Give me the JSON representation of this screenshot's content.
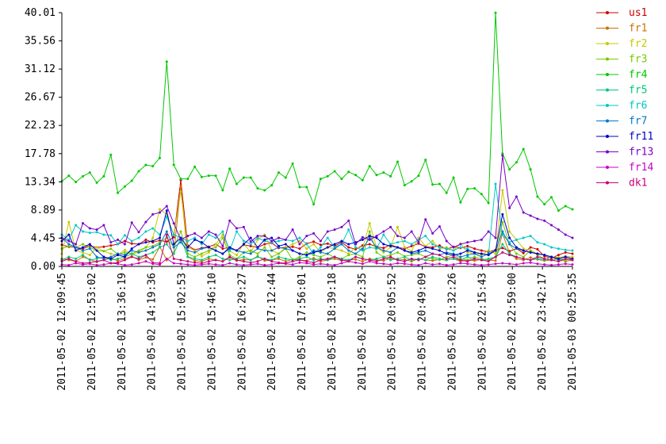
{
  "chart_data": {
    "type": "line",
    "title": "",
    "xlabel": "",
    "ylabel": "",
    "ylim": [
      0,
      40.01
    ],
    "y_ticks": [
      "0.00",
      "4.45",
      "8.89",
      "13.34",
      "17.78",
      "22.23",
      "26.67",
      "31.12",
      "35.56",
      "40.01"
    ],
    "x_ticks": [
      "2011-05-02 12:09:45",
      "2011-05-02 12:53:02",
      "2011-05-02 13:36:19",
      "2011-05-02 14:19:36",
      "2011-05-02 15:02:53",
      "2011-05-02 15:46:10",
      "2011-05-02 16:29:27",
      "2011-05-02 17:12:44",
      "2011-05-02 17:56:01",
      "2011-05-02 18:39:18",
      "2011-05-02 19:22:35",
      "2011-05-02 20:05:52",
      "2011-05-02 20:49:09",
      "2011-05-02 21:32:26",
      "2011-05-02 22:15:43",
      "2011-05-02 22:59:00",
      "2011-05-02 23:42:17",
      "2011-05-03 00:25:35"
    ],
    "grid": false,
    "legend_position": "right",
    "series": [
      {
        "name": "us1",
        "color": "#cc0000",
        "values": [
          3.4,
          3.1,
          3.0,
          2.8,
          3.2,
          3.0,
          3.1,
          3.3,
          3.5,
          4.0,
          3.6,
          3.5,
          4.2,
          3.8,
          4.1,
          3.9,
          4.6,
          13.6,
          3.3,
          2.6,
          2.9,
          3.1,
          3.5,
          2.8,
          3.0,
          2.5,
          3.4,
          3.2,
          3.0,
          3.5,
          3.7,
          2.9,
          3.0,
          3.1,
          2.8,
          3.6,
          3.9,
          3.4,
          3.6,
          3.2,
          3.8,
          3.0,
          2.7,
          3.3,
          3.5,
          3.1,
          2.9,
          3.4,
          3.0,
          2.8,
          3.2,
          3.6,
          3.1,
          3.0,
          3.3,
          2.7,
          3.1,
          2.9,
          3.2,
          2.8,
          2.5,
          2.3,
          2.6,
          2.9,
          2.4,
          2.8,
          2.1,
          3.0,
          2.7,
          1.6,
          1.3,
          1.8,
          2.2,
          2.0
        ]
      },
      {
        "name": "fr1",
        "color": "#c87000",
        "values": [
          1.2,
          1.0,
          0.8,
          1.5,
          1.1,
          0.7,
          1.0,
          1.3,
          0.9,
          1.2,
          1.6,
          1.0,
          1.4,
          1.1,
          3.1,
          1.0,
          2.0,
          12.6,
          1.5,
          0.9,
          0.8,
          1.2,
          1.0,
          0.8,
          1.4,
          0.9,
          1.1,
          1.0,
          1.6,
          0.9,
          1.0,
          1.2,
          0.8,
          1.1,
          1.0,
          0.9,
          1.3,
          0.8,
          1.0,
          1.2,
          0.9,
          1.0,
          1.1,
          0.8,
          1.2,
          1.0,
          0.9,
          1.3,
          1.0,
          1.1,
          0.8,
          1.2,
          1.0,
          0.9,
          1.1,
          1.0,
          1.2,
          0.8,
          1.0,
          0.9,
          1.1,
          1.0,
          0.9,
          5.2,
          2.1,
          1.2,
          1.0,
          1.4,
          1.1,
          0.9,
          1.0,
          1.2,
          0.8,
          1.0
        ]
      },
      {
        "name": "fr2",
        "color": "#c8c800",
        "values": [
          2.0,
          7.0,
          2.5,
          2.2,
          1.8,
          3.0,
          2.4,
          2.0,
          1.8,
          2.6,
          1.9,
          2.2,
          3.0,
          4.5,
          9.0,
          8.2,
          5.0,
          11.8,
          3.0,
          2.5,
          1.6,
          2.2,
          3.5,
          5.0,
          2.4,
          1.8,
          3.6,
          2.2,
          4.2,
          5.0,
          2.5,
          2.0,
          3.0,
          3.5,
          4.0,
          2.8,
          3.5,
          2.2,
          3.0,
          2.8,
          2.5,
          2.0,
          3.0,
          2.8,
          6.8,
          3.0,
          2.2,
          3.0,
          6.2,
          3.0,
          2.4,
          4.5,
          3.2,
          4.0,
          2.8,
          3.0,
          2.5,
          3.6,
          2.2,
          2.0,
          1.8,
          2.5,
          2.0,
          12.0,
          5.5,
          4.2,
          2.8,
          2.5,
          2.0,
          1.8,
          1.5,
          1.4,
          1.6,
          1.5
        ]
      },
      {
        "name": "fr3",
        "color": "#78c800",
        "values": [
          2.8,
          3.2,
          3.0,
          3.5,
          3.0,
          2.5,
          2.4,
          2.8,
          1.9,
          2.2,
          2.0,
          2.5,
          3.0,
          3.2,
          3.8,
          4.5,
          3.0,
          5.5,
          2.0,
          1.5,
          2.0,
          2.5,
          3.0,
          4.5,
          1.8,
          1.2,
          2.2,
          2.5,
          2.0,
          3.0,
          1.5,
          2.0,
          2.8,
          1.0,
          1.5,
          2.2,
          1.8,
          1.5,
          2.0,
          1.4,
          1.2,
          1.8,
          2.0,
          1.5,
          5.5,
          2.2,
          1.5,
          1.8,
          2.2,
          1.6,
          1.8,
          2.0,
          1.5,
          1.2,
          1.0,
          1.5,
          1.8,
          1.2,
          1.0,
          1.5,
          1.2,
          1.0,
          1.5,
          7.0,
          3.5,
          2.0,
          1.5,
          2.5,
          1.8,
          1.2,
          1.0,
          0.8,
          1.0,
          1.2
        ]
      },
      {
        "name": "fr4",
        "color": "#00c800",
        "values": [
          13.4,
          14.3,
          13.3,
          14.2,
          14.8,
          13.2,
          14.2,
          17.6,
          11.6,
          12.6,
          13.5,
          15.0,
          16.0,
          15.8,
          17.1,
          32.3,
          16.0,
          13.8,
          13.8,
          15.7,
          14.1,
          14.3,
          14.3,
          12.0,
          15.4,
          13.0,
          14.0,
          14.0,
          12.3,
          12.0,
          12.8,
          14.8,
          14.0,
          16.2,
          12.5,
          12.5,
          9.8,
          13.8,
          14.2,
          15.0,
          13.8,
          14.9,
          14.4,
          13.6,
          15.8,
          14.4,
          14.8,
          14.2,
          16.5,
          12.8,
          13.4,
          14.3,
          16.8,
          12.9,
          13.0,
          11.6,
          14.0,
          10.1,
          12.2,
          12.3,
          11.4,
          10.0,
          40.0,
          17.8,
          15.3,
          16.4,
          18.5,
          15.3,
          11.0,
          9.8,
          10.9,
          8.8,
          9.5,
          9.0
        ]
      },
      {
        "name": "fr5",
        "color": "#00c878",
        "values": [
          1.0,
          1.5,
          1.2,
          1.8,
          1.0,
          1.2,
          1.5,
          1.0,
          1.2,
          1.5,
          2.0,
          1.5,
          1.8,
          2.2,
          3.0,
          3.5,
          2.0,
          4.5,
          1.5,
          1.2,
          1.0,
          1.5,
          1.8,
          1.2,
          1.0,
          1.2,
          1.5,
          1.0,
          1.5,
          1.2,
          1.0,
          1.5,
          1.2,
          1.0,
          1.2,
          1.5,
          1.0,
          1.2,
          1.0,
          1.5,
          1.2,
          1.0,
          1.5,
          1.2,
          1.0,
          1.2,
          1.5,
          1.0,
          1.2,
          1.5,
          1.0,
          1.2,
          1.0,
          1.5,
          1.2,
          1.0,
          1.2,
          1.0,
          1.5,
          1.2,
          1.0,
          1.2,
          1.5,
          3.5,
          2.0,
          1.5,
          1.2,
          1.0,
          1.2,
          1.0,
          1.5,
          1.0,
          1.2,
          1.0
        ]
      },
      {
        "name": "fr6",
        "color": "#00c8c8",
        "values": [
          5.0,
          4.2,
          6.5,
          5.5,
          5.3,
          5.4,
          5.0,
          4.9,
          3.5,
          4.9,
          4.0,
          4.5,
          5.5,
          6.0,
          5.0,
          7.8,
          5.0,
          4.5,
          4.0,
          4.5,
          3.5,
          5.0,
          4.5,
          5.5,
          2.5,
          5.5,
          4.0,
          3.5,
          4.5,
          4.0,
          3.8,
          4.0,
          4.2,
          4.0,
          4.5,
          3.5,
          2.0,
          3.0,
          4.5,
          3.0,
          3.5,
          5.8,
          3.0,
          2.5,
          3.0,
          2.8,
          5.0,
          3.5,
          3.8,
          4.0,
          3.5,
          4.2,
          4.8,
          3.5,
          3.0,
          2.8,
          2.5,
          3.0,
          2.8,
          2.2,
          2.0,
          1.8,
          13.0,
          5.0,
          3.8,
          4.2,
          4.5,
          4.8,
          3.8,
          3.5,
          3.0,
          2.8,
          2.6,
          2.5
        ]
      },
      {
        "name": "fr7",
        "color": "#0078c8",
        "values": [
          4.5,
          3.5,
          3.0,
          2.5,
          2.8,
          1.5,
          1.2,
          1.5,
          2.0,
          1.8,
          2.5,
          2.2,
          2.5,
          3.0,
          3.5,
          5.5,
          3.0,
          3.8,
          2.5,
          2.2,
          2.8,
          3.0,
          2.5,
          2.0,
          2.8,
          2.5,
          2.2,
          2.0,
          2.8,
          2.5,
          2.5,
          3.0,
          2.8,
          2.5,
          2.0,
          1.8,
          2.5,
          2.2,
          2.0,
          2.8,
          3.5,
          2.5,
          2.0,
          2.8,
          4.5,
          3.0,
          2.5,
          2.2,
          3.0,
          2.5,
          2.0,
          2.2,
          2.5,
          2.0,
          1.8,
          2.2,
          2.0,
          1.5,
          1.8,
          2.0,
          1.5,
          2.0,
          2.5,
          5.5,
          3.5,
          2.8,
          2.5,
          2.2,
          2.0,
          1.8,
          1.5,
          1.2,
          1.5,
          1.2
        ]
      },
      {
        "name": "fr11",
        "color": "#0000c8",
        "values": [
          4.0,
          5.0,
          2.5,
          3.0,
          3.5,
          2.5,
          1.5,
          1.2,
          1.8,
          1.5,
          2.8,
          3.5,
          3.8,
          4.0,
          4.5,
          8.8,
          3.5,
          4.5,
          3.0,
          4.2,
          3.8,
          3.0,
          2.5,
          2.0,
          3.0,
          2.5,
          3.5,
          4.5,
          3.0,
          4.2,
          4.5,
          3.2,
          3.5,
          2.5,
          2.0,
          1.8,
          2.2,
          2.5,
          3.0,
          3.5,
          4.0,
          3.5,
          3.8,
          4.2,
          4.8,
          4.5,
          3.5,
          3.2,
          3.0,
          2.5,
          2.2,
          2.5,
          3.0,
          2.8,
          2.5,
          2.0,
          1.8,
          2.0,
          2.5,
          2.2,
          2.0,
          1.8,
          2.5,
          8.2,
          4.5,
          3.0,
          2.5,
          2.2,
          2.0,
          1.8,
          1.5,
          1.2,
          1.5,
          1.2
        ]
      },
      {
        "name": "fr13",
        "color": "#7800c8",
        "values": [
          4.5,
          4.0,
          3.5,
          6.8,
          6.0,
          5.8,
          6.5,
          3.8,
          4.2,
          3.5,
          6.9,
          5.4,
          7.0,
          8.2,
          8.5,
          9.5,
          6.8,
          4.2,
          4.8,
          5.2,
          4.5,
          5.5,
          5.0,
          3.2,
          7.2,
          6.0,
          6.2,
          3.9,
          4.8,
          4.8,
          4.0,
          4.5,
          4.2,
          5.8,
          3.5,
          4.8,
          5.2,
          4.0,
          5.5,
          5.8,
          6.2,
          7.2,
          3.5,
          4.6,
          4.2,
          4.8,
          5.5,
          6.2,
          4.8,
          4.5,
          5.5,
          3.8,
          7.4,
          5.2,
          6.3,
          4.0,
          3.0,
          3.5,
          3.8,
          4.0,
          4.2,
          5.5,
          4.5,
          17.5,
          9.2,
          11.0,
          8.5,
          8.0,
          7.5,
          7.2,
          6.5,
          5.8,
          5.0,
          4.5
        ]
      },
      {
        "name": "fr14",
        "color": "#c800c8",
        "values": [
          0.3,
          0.2,
          0.5,
          0.3,
          0.4,
          0.2,
          0.3,
          0.5,
          0.4,
          0.2,
          0.3,
          0.5,
          0.8,
          0.4,
          0.3,
          1.2,
          0.5,
          0.4,
          0.3,
          0.2,
          0.3,
          0.4,
          0.3,
          0.2,
          0.5,
          0.3,
          0.2,
          0.3,
          0.4,
          0.2,
          0.3,
          0.5,
          0.4,
          0.3,
          0.6,
          0.5,
          0.3,
          0.4,
          0.3,
          0.2,
          0.5,
          0.8,
          0.6,
          0.4,
          0.8,
          0.5,
          0.4,
          0.3,
          0.5,
          0.4,
          0.3,
          0.2,
          0.5,
          0.3,
          0.4,
          0.2,
          0.3,
          0.5,
          0.4,
          0.3,
          0.2,
          0.3,
          0.4,
          0.5,
          0.4,
          0.3,
          0.5,
          0.6,
          0.4,
          0.3,
          0.2,
          0.3,
          0.4,
          0.3
        ]
      },
      {
        "name": "dk1",
        "color": "#c80078",
        "values": [
          0.8,
          1.2,
          0.8,
          0.5,
          0.6,
          0.8,
          1.0,
          0.5,
          0.6,
          1.0,
          1.5,
          1.2,
          1.8,
          0.6,
          0.5,
          5.0,
          1.2,
          1.0,
          0.8,
          0.6,
          0.5,
          0.8,
          1.0,
          0.8,
          1.5,
          1.0,
          0.8,
          0.6,
          0.8,
          1.2,
          0.8,
          0.6,
          0.5,
          0.8,
          1.0,
          0.8,
          0.6,
          1.0,
          1.2,
          1.5,
          1.0,
          0.8,
          1.5,
          1.2,
          1.0,
          0.8,
          1.2,
          1.5,
          1.0,
          0.8,
          1.2,
          1.0,
          1.5,
          2.0,
          1.8,
          1.2,
          1.5,
          1.0,
          0.8,
          1.2,
          1.0,
          0.8,
          1.5,
          2.2,
          1.8,
          1.5,
          1.2,
          1.0,
          1.5,
          1.2,
          1.0,
          0.8,
          1.2,
          1.0
        ]
      }
    ]
  }
}
